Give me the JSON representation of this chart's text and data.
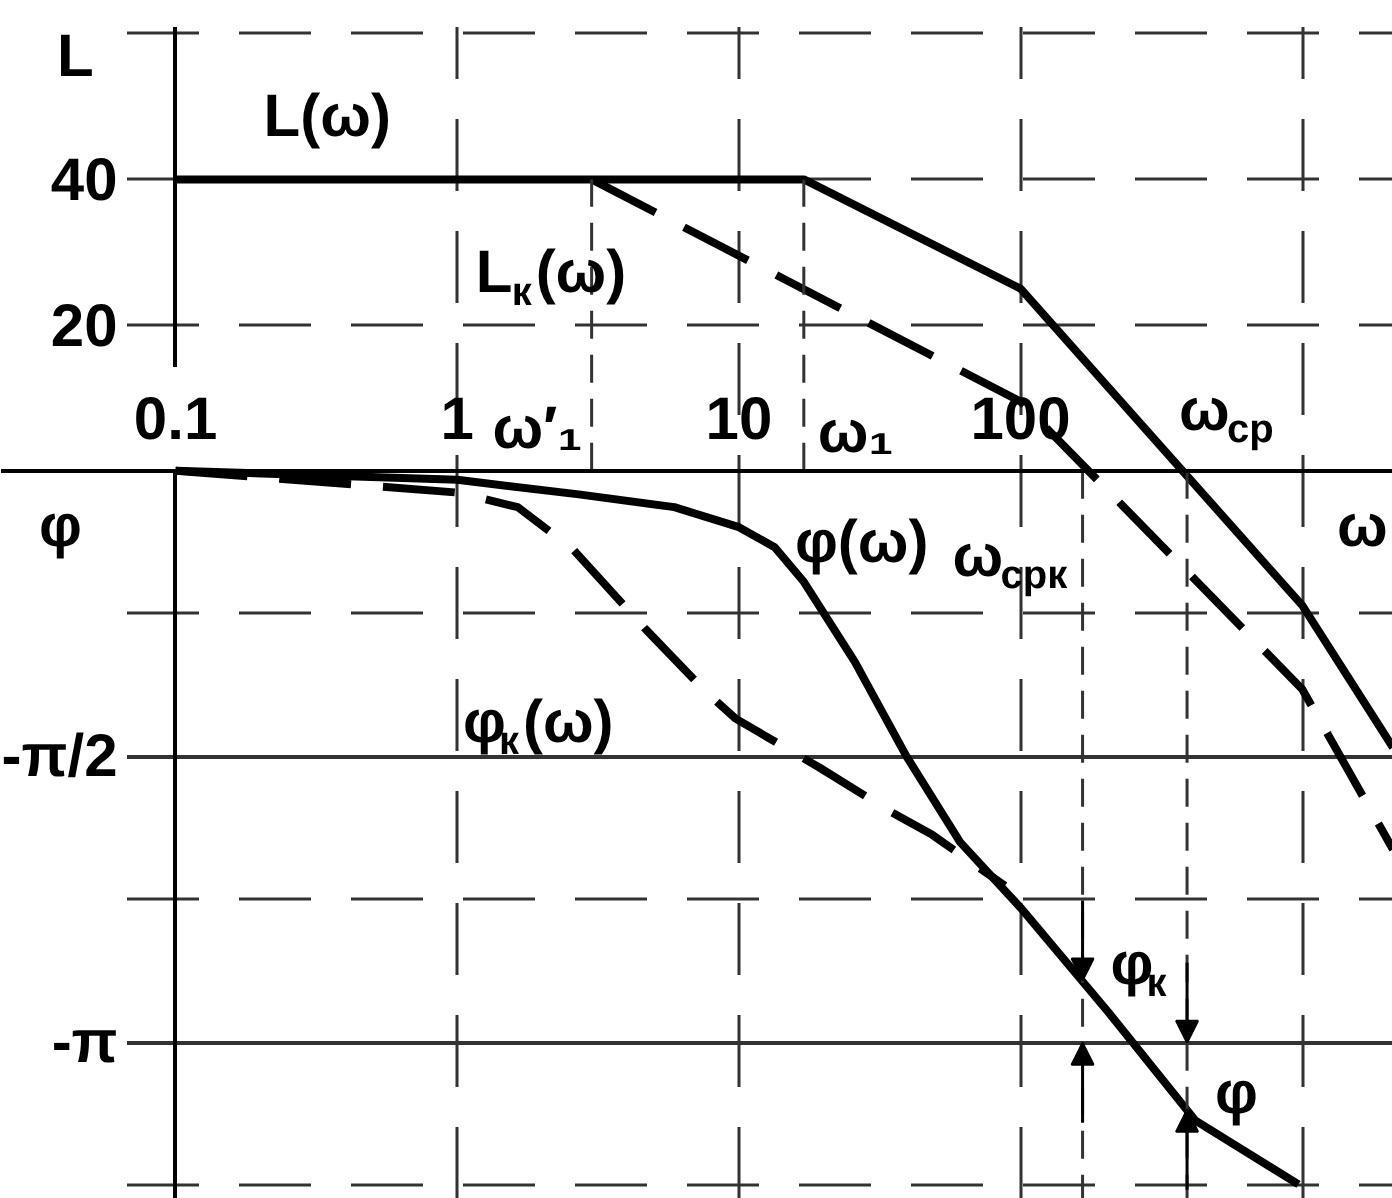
{
  "chart_data": {
    "type": "line",
    "xlabel": "ω",
    "ylabel": "φ",
    "y2label": "L",
    "log": "x",
    "grid": true,
    "xlim": [
      0.024,
      2100
    ],
    "xticks": [
      0.1,
      1,
      10,
      100,
      {
        "value": 1000,
        "label": null
      }
    ],
    "ylim": [
      -4.0,
      2.58
    ],
    "yticks": [
      {
        "value": -0.7854,
        "label": null
      },
      {
        "value": -1.5708,
        "label": "-π/2"
      },
      {
        "value": -2.3562,
        "label": null
      },
      {
        "value": -3.1416,
        "label": "-π"
      },
      {
        "value": -3.927,
        "label": null
      }
    ],
    "y2lim": [
      -100,
      64.5
    ],
    "y2ticks": [
      {
        "value": 60,
        "label": null
      },
      40,
      20
    ],
    "series": [
      {
        "name": "L(ω)",
        "color": "#000000",
        "axis": "y2",
        "line_style": "solid",
        "x": [
          0.1,
          17,
          100,
          1000,
          2100
        ],
        "values": [
          40,
          40,
          25,
          -18.5,
          -38
        ]
      },
      {
        "name": "L$_{к}$(ω)",
        "color": "#000000",
        "axis": "y2",
        "line_style": "dashed",
        "x": [
          3,
          100,
          1000,
          2100
        ],
        "values": [
          40,
          9.5,
          -30,
          -52
        ]
      },
      {
        "name": "φ(ω)",
        "color": "#000000",
        "line_style": "solid",
        "x": [
          0.1,
          1,
          2.7,
          5.9,
          10,
          13.4,
          17,
          25.8,
          39.4,
          61,
          100,
          204,
          418,
          970
        ],
        "values": [
          0,
          -0.05,
          -0.13,
          -0.2,
          -0.31,
          -0.42,
          -0.61,
          -1.05,
          -1.57,
          -2.04,
          -2.4,
          -2.97,
          -3.57,
          -3.92
        ]
      },
      {
        "name": "φ$_{к}$(ω)",
        "color": "#000000",
        "line_style": "dashed",
        "x": [
          0.1,
          1,
          1.64,
          2.57,
          4.66,
          7.7,
          9.7,
          19.3,
          34.3,
          48.6,
          88
        ],
        "values": [
          0,
          -0.12,
          -0.2,
          -0.43,
          -0.87,
          -1.22,
          -1.36,
          -1.63,
          -1.87,
          -2.0,
          -2.28
        ]
      }
    ],
    "ref_lines": [
      {
        "axis": "x",
        "value": 3,
        "label": "ω′₁",
        "line_style": "dashed"
      },
      {
        "axis": "x",
        "value": 17,
        "label": "ω₁",
        "line_style": "dashed"
      },
      {
        "axis": "x",
        "value": 166,
        "label": "ω$_{срк}$",
        "line_style": "dashed"
      },
      {
        "axis": "x",
        "value": 390,
        "label": "ω$_{ср}$",
        "line_style": "dashed"
      }
    ],
    "annotations": [
      {
        "text": "φ$_{к}$",
        "x": 166,
        "y": -2.8
      },
      {
        "text": "φ",
        "x": 390,
        "y": -3.51
      }
    ]
  }
}
